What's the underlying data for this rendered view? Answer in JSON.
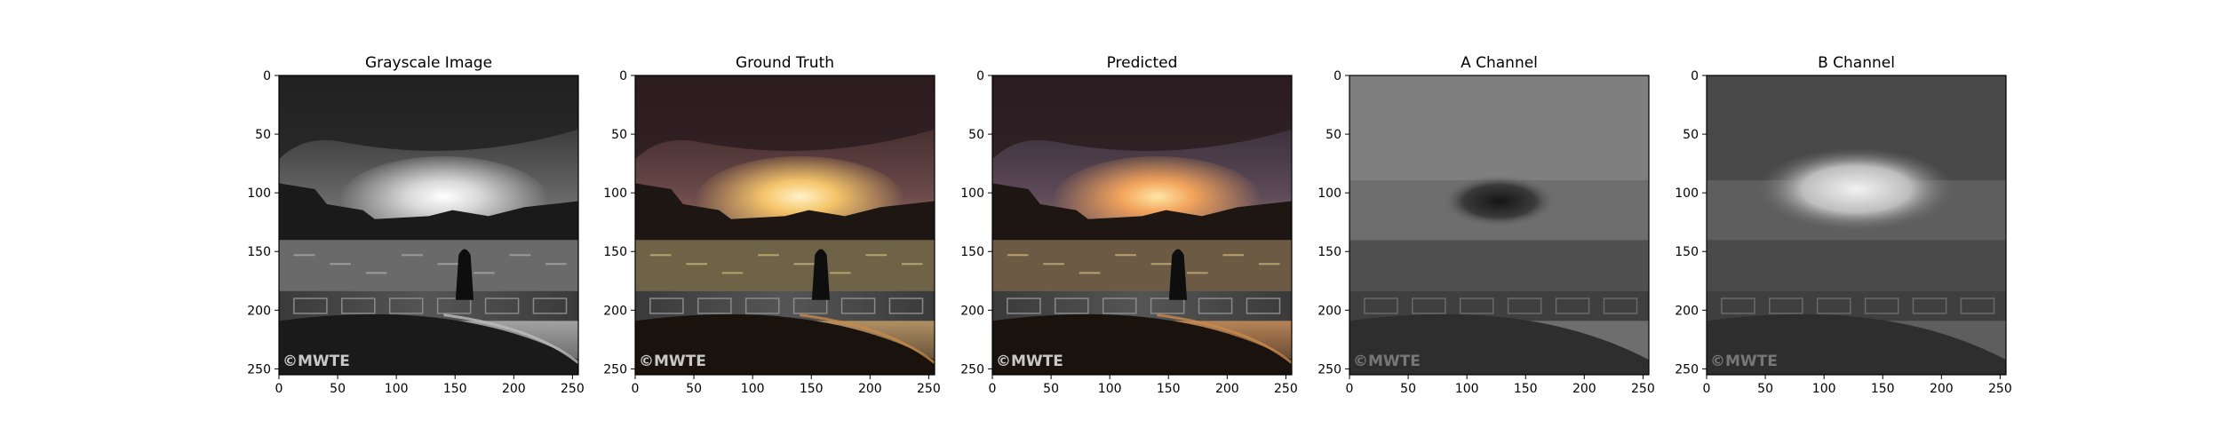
{
  "figure": {
    "panels": [
      {
        "title": "Grayscale Image",
        "image": "grayscale-london-sunset",
        "colorized": false
      },
      {
        "title": "Ground Truth",
        "image": "ground-truth-london-sunset",
        "colorized": true
      },
      {
        "title": "Predicted",
        "image": "predicted-london-sunset",
        "colorized": true
      },
      {
        "title": "A Channel",
        "image": "a-channel-map",
        "colorized": false
      },
      {
        "title": "B Channel",
        "image": "b-channel-map",
        "colorized": false
      }
    ],
    "watermark": "©MWTE",
    "colors": {
      "sky_dark": "#1e1e1e",
      "sunset_glow": "#f5c46a",
      "water": "#6a6a6a",
      "frame": "#000000"
    }
  },
  "chart_data": [
    {
      "type": "image",
      "title": "Grayscale Image",
      "xlim": [
        0,
        255
      ],
      "ylim": [
        255,
        0
      ],
      "xticks": [
        0,
        50,
        100,
        150,
        200,
        250
      ],
      "yticks": [
        0,
        50,
        100,
        150,
        200,
        250
      ]
    },
    {
      "type": "image",
      "title": "Ground Truth",
      "xlim": [
        0,
        255
      ],
      "ylim": [
        255,
        0
      ],
      "xticks": [
        0,
        50,
        100,
        150,
        200,
        250
      ],
      "yticks": [
        0,
        50,
        100,
        150,
        200,
        250
      ]
    },
    {
      "type": "image",
      "title": "Predicted",
      "xlim": [
        0,
        255
      ],
      "ylim": [
        255,
        0
      ],
      "xticks": [
        0,
        50,
        100,
        150,
        200,
        250
      ],
      "yticks": [
        0,
        50,
        100,
        150,
        200,
        250
      ]
    },
    {
      "type": "image",
      "title": "A Channel",
      "xlim": [
        0,
        255
      ],
      "ylim": [
        255,
        0
      ],
      "xticks": [
        0,
        50,
        100,
        150,
        200,
        250
      ],
      "yticks": [
        0,
        50,
        100,
        150,
        200,
        250
      ]
    },
    {
      "type": "image",
      "title": "B Channel",
      "xlim": [
        0,
        255
      ],
      "ylim": [
        255,
        0
      ],
      "xticks": [
        0,
        50,
        100,
        150,
        200,
        250
      ],
      "yticks": [
        0,
        50,
        100,
        150,
        200,
        250
      ]
    }
  ]
}
